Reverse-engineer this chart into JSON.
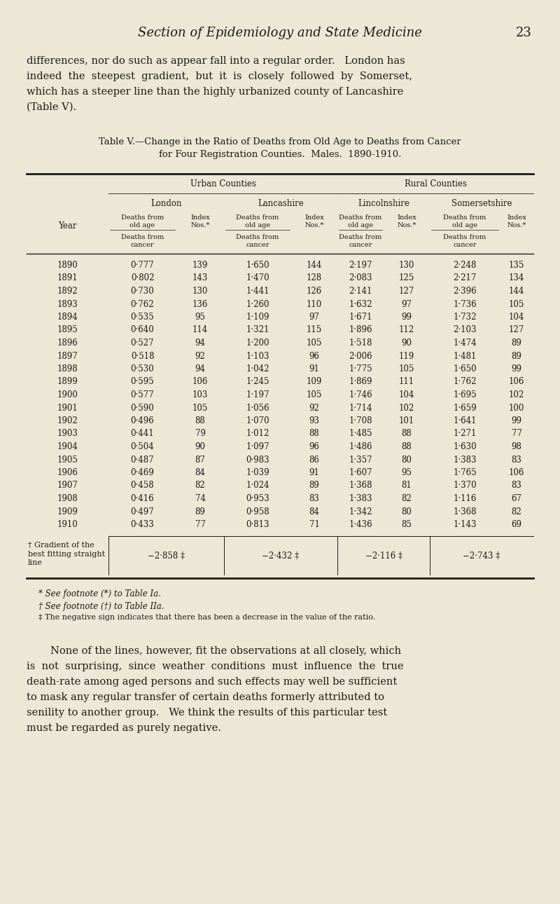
{
  "bg_color": "#ede8d5",
  "text_color": "#1a1a1a",
  "page_header": "Section of Epidemiology and State Medicine",
  "page_number": "23",
  "intro_text": [
    "differences, nor do such as appear fall into a regular order.   London has",
    "indeed  the  steepest  gradient,  but  it  is  closely  followed  by  Somerset,",
    "which has a steeper line than the highly urbanized county of Lancashire",
    "(Table V)."
  ],
  "table_title_line1": "Table V.—Change in the Ratio of Deaths from Old Age to Deaths from Cancer",
  "table_title_line2": "for Four Registration Counties.  Males.  1890-1910.",
  "urban_counties_label": "Urban Counties",
  "rural_counties_label": "Rural Counties",
  "col_headers": [
    "London",
    "Lancashire",
    "Lincolnshire",
    "Somersetshire"
  ],
  "years": [
    1890,
    1891,
    1892,
    1893,
    1894,
    1895,
    1896,
    1897,
    1898,
    1899,
    1900,
    1901,
    1902,
    1903,
    1904,
    1905,
    1906,
    1907,
    1908,
    1909,
    1910
  ],
  "london_ratio": [
    "0·777",
    "0·802",
    "0·730",
    "0·762",
    "0·535",
    "0·640",
    "0·527",
    "0·518",
    "0·530",
    "0·595",
    "0·577",
    "0·590",
    "0·496",
    "0·441",
    "0·504",
    "0·487",
    "0·469",
    "0·458",
    "0·416",
    "0·497",
    "0·433"
  ],
  "london_index": [
    139,
    143,
    130,
    136,
    95,
    114,
    94,
    92,
    94,
    106,
    103,
    105,
    88,
    79,
    90,
    87,
    84,
    82,
    74,
    89,
    77
  ],
  "lancs_ratio": [
    "1·650",
    "1·470",
    "1·441",
    "1·260",
    "1·109",
    "1·321",
    "1·200",
    "1·103",
    "1·042",
    "1·245",
    "1·197",
    "1·056",
    "1·070",
    "1·012",
    "1·097",
    "0·983",
    "1·039",
    "1·024",
    "0·953",
    "0·958",
    "0·813"
  ],
  "lancs_index": [
    144,
    128,
    126,
    110,
    97,
    115,
    105,
    96,
    91,
    109,
    105,
    92,
    93,
    88,
    96,
    86,
    91,
    89,
    83,
    84,
    71
  ],
  "lincs_ratio": [
    "2·197",
    "2·083",
    "2·141",
    "1·632",
    "1·671",
    "1·896",
    "1·518",
    "2·006",
    "1·775",
    "1·869",
    "1·746",
    "1·714",
    "1·708",
    "1·485",
    "1·486",
    "1·357",
    "1·607",
    "1·368",
    "1·383",
    "1·342",
    "1·436"
  ],
  "lincs_index": [
    130,
    125,
    127,
    97,
    99,
    112,
    90,
    119,
    105,
    111,
    104,
    102,
    101,
    88,
    88,
    80,
    95,
    81,
    82,
    80,
    85
  ],
  "somerset_ratio": [
    "2·248",
    "2·217",
    "2·396",
    "1·736",
    "1·732",
    "2·103",
    "1·474",
    "1·481",
    "1·650",
    "1·762",
    "1·695",
    "1·659",
    "1·641",
    "1·271",
    "1·630",
    "1·383",
    "1·765",
    "1·370",
    "1·116",
    "1·368",
    "1·143"
  ],
  "somerset_index": [
    135,
    134,
    144,
    105,
    104,
    127,
    89,
    89,
    99,
    106,
    102,
    100,
    99,
    77,
    98,
    83,
    106,
    83,
    67,
    82,
    69
  ],
  "gradient_london": "−2·858 ‡",
  "gradient_lancs": "−2·432 ‡",
  "gradient_lincs": "−2·116 ‡",
  "gradient_somerset": "−2·743 ‡",
  "footnote1": "* See footnote (*) to Table Ia.",
  "footnote2": "† See footnote (†) to Table IIa.",
  "footnote3": "‡ The negative sign indicates that there has been a decrease in the value of the ratio.",
  "gradient_label_line1": "† Gradient of the",
  "gradient_label_line2": "best fitting straight",
  "gradient_label_line3": "line",
  "footer_text": [
    "None of the lines, however, fit the observations at all closely, which",
    "is  not  surprising,  since  weather  conditions  must  influence  the  true",
    "death-rate among aged persons and such effects may well be sufficient",
    "to mask any regular transfer of certain deaths formerly attributed to",
    "senility to another group.   We think the results of this particular test",
    "must be regarded as purely negative."
  ]
}
